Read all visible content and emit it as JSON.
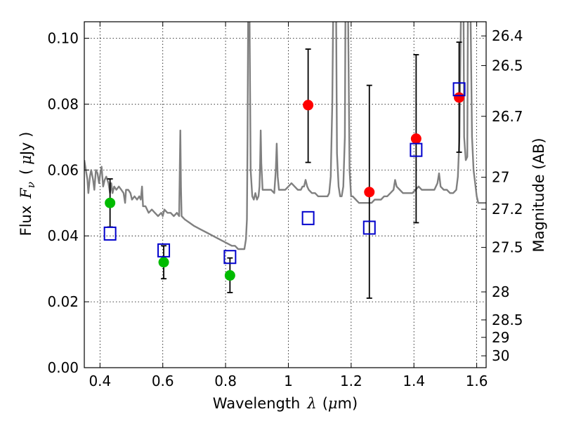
{
  "chart_data": {
    "type": "scatter",
    "title": "",
    "xlabel": "Wavelength",
    "xlabel_symbol": "λ",
    "xlabel_unit_open": "(",
    "xlabel_unit_mu": "μ",
    "xlabel_unit_rest": "m)",
    "ylabel_left": "Flux",
    "ylabel_left_symbol": "F",
    "ylabel_left_subscript": "ν",
    "ylabel_left_unit_open": "(",
    "ylabel_left_unit_mu": "μ",
    "ylabel_left_unit_rest": "Jy )",
    "ylabel_right": "Magnitude (AB)",
    "xlim": [
      0.35,
      1.63
    ],
    "ylim": [
      0.0,
      0.105
    ],
    "grid": true,
    "grid_style": "dotted",
    "x_ticks": [
      0.4,
      0.6,
      0.8,
      1.0,
      1.2,
      1.4,
      1.6
    ],
    "x_tick_labels": [
      "0.4",
      "0.6",
      "0.8",
      "1",
      "1.2",
      "1.4",
      "1.6"
    ],
    "y_ticks": [
      0.0,
      0.02,
      0.04,
      0.06,
      0.08,
      0.1
    ],
    "y_tick_labels": [
      "0.00",
      "0.02",
      "0.04",
      "0.06",
      "0.08",
      "0.10"
    ],
    "right_axis_ticks": [
      {
        "label": "26.4",
        "flux": 0.1007
      },
      {
        "label": "26.5",
        "flux": 0.0917
      },
      {
        "label": "26.7",
        "flux": 0.0763
      },
      {
        "label": "27",
        "flux": 0.0578
      },
      {
        "label": "27.2",
        "flux": 0.0481
      },
      {
        "label": "27.5",
        "flux": 0.0365
      },
      {
        "label": "28",
        "flux": 0.023
      },
      {
        "label": "28.5",
        "flux": 0.0145
      },
      {
        "label": "29",
        "flux": 0.0092
      },
      {
        "label": "30",
        "flux": 0.0036
      }
    ],
    "series": [
      {
        "kind": "spectrum",
        "color": "#808080",
        "points": [
          [
            0.35,
            0.063
          ],
          [
            0.355,
            0.06
          ],
          [
            0.36,
            0.057
          ],
          [
            0.363,
            0.053
          ],
          [
            0.368,
            0.058
          ],
          [
            0.372,
            0.06
          ],
          [
            0.378,
            0.057
          ],
          [
            0.382,
            0.054
          ],
          [
            0.387,
            0.06
          ],
          [
            0.392,
            0.059
          ],
          [
            0.397,
            0.056
          ],
          [
            0.401,
            0.059
          ],
          [
            0.405,
            0.061
          ],
          [
            0.41,
            0.055
          ],
          [
            0.415,
            0.057
          ],
          [
            0.42,
            0.058
          ],
          [
            0.427,
            0.056
          ],
          [
            0.432,
            0.053
          ],
          [
            0.436,
            0.056
          ],
          [
            0.44,
            0.053
          ],
          [
            0.445,
            0.055
          ],
          [
            0.452,
            0.054
          ],
          [
            0.46,
            0.055
          ],
          [
            0.468,
            0.054
          ],
          [
            0.475,
            0.053
          ],
          [
            0.48,
            0.05
          ],
          [
            0.483,
            0.054
          ],
          [
            0.49,
            0.054
          ],
          [
            0.497,
            0.053
          ],
          [
            0.502,
            0.051
          ],
          [
            0.51,
            0.052
          ],
          [
            0.518,
            0.051
          ],
          [
            0.525,
            0.052
          ],
          [
            0.53,
            0.051
          ],
          [
            0.534,
            0.055
          ],
          [
            0.537,
            0.049
          ],
          [
            0.545,
            0.049
          ],
          [
            0.555,
            0.047
          ],
          [
            0.565,
            0.048
          ],
          [
            0.575,
            0.047
          ],
          [
            0.585,
            0.046
          ],
          [
            0.595,
            0.047
          ],
          [
            0.6,
            0.046
          ],
          [
            0.605,
            0.048
          ],
          [
            0.615,
            0.047
          ],
          [
            0.625,
            0.047
          ],
          [
            0.635,
            0.046
          ],
          [
            0.645,
            0.047
          ],
          [
            0.652,
            0.046
          ],
          [
            0.656,
            0.072
          ],
          [
            0.658,
            0.055
          ],
          [
            0.66,
            0.046
          ],
          [
            0.67,
            0.045
          ],
          [
            0.685,
            0.044
          ],
          [
            0.7,
            0.043
          ],
          [
            0.72,
            0.042
          ],
          [
            0.74,
            0.041
          ],
          [
            0.76,
            0.04
          ],
          [
            0.78,
            0.039
          ],
          [
            0.8,
            0.038
          ],
          [
            0.82,
            0.037
          ],
          [
            0.83,
            0.037
          ],
          [
            0.84,
            0.036
          ],
          [
            0.85,
            0.036
          ],
          [
            0.86,
            0.036
          ],
          [
            0.865,
            0.039
          ],
          [
            0.868,
            0.045
          ],
          [
            0.87,
            0.07
          ],
          [
            0.872,
            0.11
          ],
          [
            0.876,
            0.11
          ],
          [
            0.88,
            0.06
          ],
          [
            0.885,
            0.052
          ],
          [
            0.89,
            0.051
          ],
          [
            0.895,
            0.053
          ],
          [
            0.9,
            0.051
          ],
          [
            0.905,
            0.052
          ],
          [
            0.908,
            0.055
          ],
          [
            0.91,
            0.062
          ],
          [
            0.912,
            0.072
          ],
          [
            0.914,
            0.062
          ],
          [
            0.918,
            0.054
          ],
          [
            0.925,
            0.054
          ],
          [
            0.935,
            0.054
          ],
          [
            0.945,
            0.054
          ],
          [
            0.955,
            0.053
          ],
          [
            0.96,
            0.06
          ],
          [
            0.963,
            0.068
          ],
          [
            0.966,
            0.058
          ],
          [
            0.97,
            0.054
          ],
          [
            0.98,
            0.054
          ],
          [
            0.99,
            0.054
          ],
          [
            1.0,
            0.055
          ],
          [
            1.01,
            0.056
          ],
          [
            1.02,
            0.055
          ],
          [
            1.03,
            0.054
          ],
          [
            1.04,
            0.054
          ],
          [
            1.045,
            0.055
          ],
          [
            1.05,
            0.055
          ],
          [
            1.055,
            0.057
          ],
          [
            1.06,
            0.055
          ],
          [
            1.065,
            0.054
          ],
          [
            1.075,
            0.053
          ],
          [
            1.085,
            0.053
          ],
          [
            1.095,
            0.052
          ],
          [
            1.105,
            0.052
          ],
          [
            1.115,
            0.052
          ],
          [
            1.125,
            0.052
          ],
          [
            1.13,
            0.053
          ],
          [
            1.135,
            0.058
          ],
          [
            1.14,
            0.08
          ],
          [
            1.143,
            0.11
          ],
          [
            1.152,
            0.11
          ],
          [
            1.155,
            0.065
          ],
          [
            1.16,
            0.055
          ],
          [
            1.165,
            0.052
          ],
          [
            1.17,
            0.052
          ],
          [
            1.175,
            0.055
          ],
          [
            1.18,
            0.07
          ],
          [
            1.182,
            0.11
          ],
          [
            1.19,
            0.11
          ],
          [
            1.195,
            0.06
          ],
          [
            1.2,
            0.052
          ],
          [
            1.205,
            0.052
          ],
          [
            1.215,
            0.051
          ],
          [
            1.225,
            0.05
          ],
          [
            1.235,
            0.05
          ],
          [
            1.245,
            0.05
          ],
          [
            1.255,
            0.05
          ],
          [
            1.265,
            0.05
          ],
          [
            1.275,
            0.051
          ],
          [
            1.285,
            0.051
          ],
          [
            1.295,
            0.051
          ],
          [
            1.305,
            0.052
          ],
          [
            1.315,
            0.052
          ],
          [
            1.325,
            0.053
          ],
          [
            1.335,
            0.054
          ],
          [
            1.34,
            0.057
          ],
          [
            1.345,
            0.055
          ],
          [
            1.355,
            0.054
          ],
          [
            1.365,
            0.053
          ],
          [
            1.375,
            0.053
          ],
          [
            1.385,
            0.053
          ],
          [
            1.395,
            0.053
          ],
          [
            1.405,
            0.054
          ],
          [
            1.415,
            0.055
          ],
          [
            1.425,
            0.054
          ],
          [
            1.435,
            0.054
          ],
          [
            1.445,
            0.054
          ],
          [
            1.455,
            0.054
          ],
          [
            1.465,
            0.054
          ],
          [
            1.475,
            0.056
          ],
          [
            1.48,
            0.059
          ],
          [
            1.485,
            0.055
          ],
          [
            1.495,
            0.054
          ],
          [
            1.505,
            0.054
          ],
          [
            1.515,
            0.053
          ],
          [
            1.525,
            0.053
          ],
          [
            1.535,
            0.054
          ],
          [
            1.54,
            0.058
          ],
          [
            1.545,
            0.07
          ],
          [
            1.55,
            0.11
          ],
          [
            1.558,
            0.11
          ],
          [
            1.56,
            0.07
          ],
          [
            1.565,
            0.063
          ],
          [
            1.57,
            0.064
          ],
          [
            1.572,
            0.11
          ],
          [
            1.58,
            0.11
          ],
          [
            1.585,
            0.07
          ],
          [
            1.59,
            0.06
          ],
          [
            1.595,
            0.056
          ],
          [
            1.6,
            0.052
          ],
          [
            1.605,
            0.05
          ],
          [
            1.615,
            0.05
          ],
          [
            1.63,
            0.05
          ]
        ]
      },
      {
        "kind": "points",
        "marker": "circle",
        "color": "#00bb00",
        "points": [
          {
            "x": 0.432,
            "y": 0.05,
            "err_low": 0.0427,
            "err_high": 0.0573
          },
          {
            "x": 0.603,
            "y": 0.032,
            "err_low": 0.027,
            "err_high": 0.037
          },
          {
            "x": 0.814,
            "y": 0.028,
            "err_low": 0.0228,
            "err_high": 0.0333
          }
        ]
      },
      {
        "kind": "points",
        "marker": "circle",
        "color": "#ff0000",
        "points": [
          {
            "x": 1.063,
            "y": 0.0797,
            "err_low": 0.0623,
            "err_high": 0.0967
          },
          {
            "x": 1.258,
            "y": 0.0533,
            "err_low": 0.0211,
            "err_high": 0.0857
          },
          {
            "x": 1.407,
            "y": 0.0695,
            "err_low": 0.044,
            "err_high": 0.095
          },
          {
            "x": 1.544,
            "y": 0.082,
            "err_low": 0.0654,
            "err_high": 0.0988
          }
        ]
      },
      {
        "kind": "points",
        "marker": "square",
        "color": "#0000cc",
        "points": [
          {
            "x": 0.432,
            "y": 0.0407
          },
          {
            "x": 0.603,
            "y": 0.0356
          },
          {
            "x": 0.814,
            "y": 0.0336
          },
          {
            "x": 1.063,
            "y": 0.0454
          },
          {
            "x": 1.258,
            "y": 0.0425
          },
          {
            "x": 1.407,
            "y": 0.0661
          },
          {
            "x": 1.544,
            "y": 0.0845
          }
        ]
      }
    ]
  }
}
